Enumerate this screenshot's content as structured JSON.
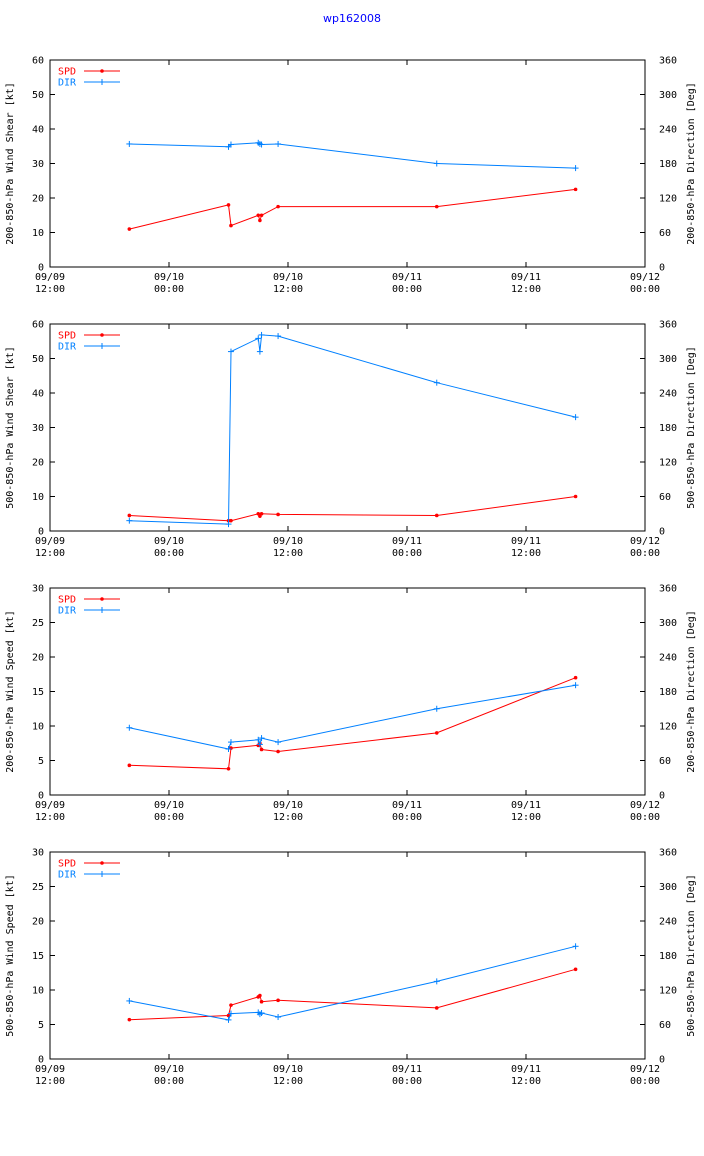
{
  "title": "wp162008",
  "x_ticks": [
    {
      "day": "09/09",
      "time": "12:00"
    },
    {
      "day": "09/10",
      "time": "00:00"
    },
    {
      "day": "09/10",
      "time": "12:00"
    },
    {
      "day": "09/11",
      "time": "00:00"
    },
    {
      "day": "09/11",
      "time": "12:00"
    },
    {
      "day": "09/12",
      "time": "00:00"
    }
  ],
  "chart_data": [
    {
      "type": "line",
      "ylabel": "200-850-hPa Wind Shear [kt]",
      "y2label": "200-850-hPa Direction [Deg]",
      "ylim": [
        0,
        60
      ],
      "yticks": [
        0,
        10,
        20,
        30,
        40,
        50,
        60
      ],
      "y2lim": [
        0,
        360
      ],
      "y2ticks": [
        0,
        60,
        120,
        180,
        240,
        300,
        360
      ],
      "xlim": [
        "09/09 12:00",
        "09/12 00:00"
      ],
      "legend_position": "top-left",
      "series": [
        {
          "name": "SPD",
          "color": "#ff0000",
          "axis": "left",
          "x": [
            "09/09 20:00",
            "09/10 06:00",
            "09/10 06:15",
            "09/10 09:00",
            "09/10 09:10",
            "09/10 09:20",
            "09/10 11:00",
            "09/11 03:00",
            "09/11 17:00"
          ],
          "values": [
            11,
            18,
            12,
            15,
            13.5,
            15,
            17.5,
            17.5,
            22.5
          ]
        },
        {
          "name": "DIR",
          "color": "#0080ff",
          "axis": "right",
          "x": [
            "09/09 20:00",
            "09/10 06:00",
            "09/10 06:15",
            "09/10 09:00",
            "09/10 09:10",
            "09/10 09:20",
            "09/10 11:00",
            "09/11 03:00",
            "09/11 17:00"
          ],
          "values": [
            214,
            209,
            213,
            216,
            214,
            213,
            214,
            180,
            172
          ]
        }
      ]
    },
    {
      "type": "line",
      "ylabel": "500-850-hPa Wind Shear [kt]",
      "y2label": "500-850-hPa Direction [Deg]",
      "ylim": [
        0,
        60
      ],
      "yticks": [
        0,
        10,
        20,
        30,
        40,
        50,
        60
      ],
      "y2lim": [
        0,
        360
      ],
      "y2ticks": [
        0,
        60,
        120,
        180,
        240,
        300,
        360
      ],
      "xlim": [
        "09/09 12:00",
        "09/12 00:00"
      ],
      "legend_position": "top-left",
      "series": [
        {
          "name": "SPD",
          "color": "#ff0000",
          "axis": "left",
          "x": [
            "09/09 20:00",
            "09/10 06:00",
            "09/10 06:15",
            "09/10 09:00",
            "09/10 09:10",
            "09/10 09:20",
            "09/10 11:00",
            "09/11 03:00",
            "09/11 17:00"
          ],
          "values": [
            4.5,
            3,
            3,
            5,
            4.3,
            5,
            4.8,
            4.5,
            10
          ]
        },
        {
          "name": "DIR",
          "color": "#0080ff",
          "axis": "right",
          "x": [
            "09/09 20:00",
            "09/10 06:00",
            "09/10 06:15",
            "09/10 09:00",
            "09/10 09:10",
            "09/10 09:20",
            "09/10 11:00",
            "09/11 03:00",
            "09/11 17:00"
          ],
          "values": [
            18,
            12,
            312,
            335,
            312,
            341,
            339,
            258,
            198
          ]
        }
      ]
    },
    {
      "type": "line",
      "ylabel": "200-850-hPa Wind Speed [kt]",
      "y2label": "200-850-hPa Direction [Deg]",
      "ylim": [
        0,
        30
      ],
      "yticks": [
        0,
        5,
        10,
        15,
        20,
        25,
        30
      ],
      "y2lim": [
        0,
        360
      ],
      "y2ticks": [
        0,
        60,
        120,
        180,
        240,
        300,
        360
      ],
      "xlim": [
        "09/09 12:00",
        "09/12 00:00"
      ],
      "legend_position": "top-left",
      "series": [
        {
          "name": "SPD",
          "color": "#ff0000",
          "axis": "left",
          "x": [
            "09/09 20:00",
            "09/10 06:00",
            "09/10 06:15",
            "09/10 09:00",
            "09/10 09:10",
            "09/10 09:20",
            "09/10 11:00",
            "09/11 03:00",
            "09/11 17:00"
          ],
          "values": [
            4.3,
            3.8,
            6.8,
            7.2,
            7.5,
            6.6,
            6.3,
            9,
            17
          ]
        },
        {
          "name": "DIR",
          "color": "#0080ff",
          "axis": "right",
          "x": [
            "09/09 20:00",
            "09/10 06:00",
            "09/10 06:15",
            "09/10 09:00",
            "09/10 09:10",
            "09/10 09:20",
            "09/10 11:00",
            "09/11 03:00",
            "09/11 17:00"
          ],
          "values": [
            117,
            80,
            92,
            96,
            88,
            99,
            92,
            150,
            191
          ]
        }
      ]
    },
    {
      "type": "line",
      "ylabel": "500-850-hPa Wind Speed [kt]",
      "y2label": "500-850-hPa Direction [Deg]",
      "ylim": [
        0,
        30
      ],
      "yticks": [
        0,
        5,
        10,
        15,
        20,
        25,
        30
      ],
      "y2lim": [
        0,
        360
      ],
      "y2ticks": [
        0,
        60,
        120,
        180,
        240,
        300,
        360
      ],
      "xlim": [
        "09/09 12:00",
        "09/12 00:00"
      ],
      "legend_position": "top-left",
      "series": [
        {
          "name": "SPD",
          "color": "#ff0000",
          "axis": "left",
          "x": [
            "09/09 20:00",
            "09/10 06:00",
            "09/10 06:15",
            "09/10 09:00",
            "09/10 09:10",
            "09/10 09:20",
            "09/10 11:00",
            "09/11 03:00",
            "09/11 17:00"
          ],
          "values": [
            5.7,
            6.3,
            7.8,
            9,
            9.2,
            8.3,
            8.5,
            7.4,
            13
          ]
        },
        {
          "name": "DIR",
          "color": "#0080ff",
          "axis": "right",
          "x": [
            "09/09 20:00",
            "09/10 06:00",
            "09/10 06:15",
            "09/10 09:00",
            "09/10 09:10",
            "09/10 09:20",
            "09/10 11:00",
            "09/11 03:00",
            "09/11 17:00"
          ],
          "values": [
            101,
            68,
            79,
            81,
            78,
            80,
            73,
            135,
            196
          ]
        }
      ]
    }
  ]
}
